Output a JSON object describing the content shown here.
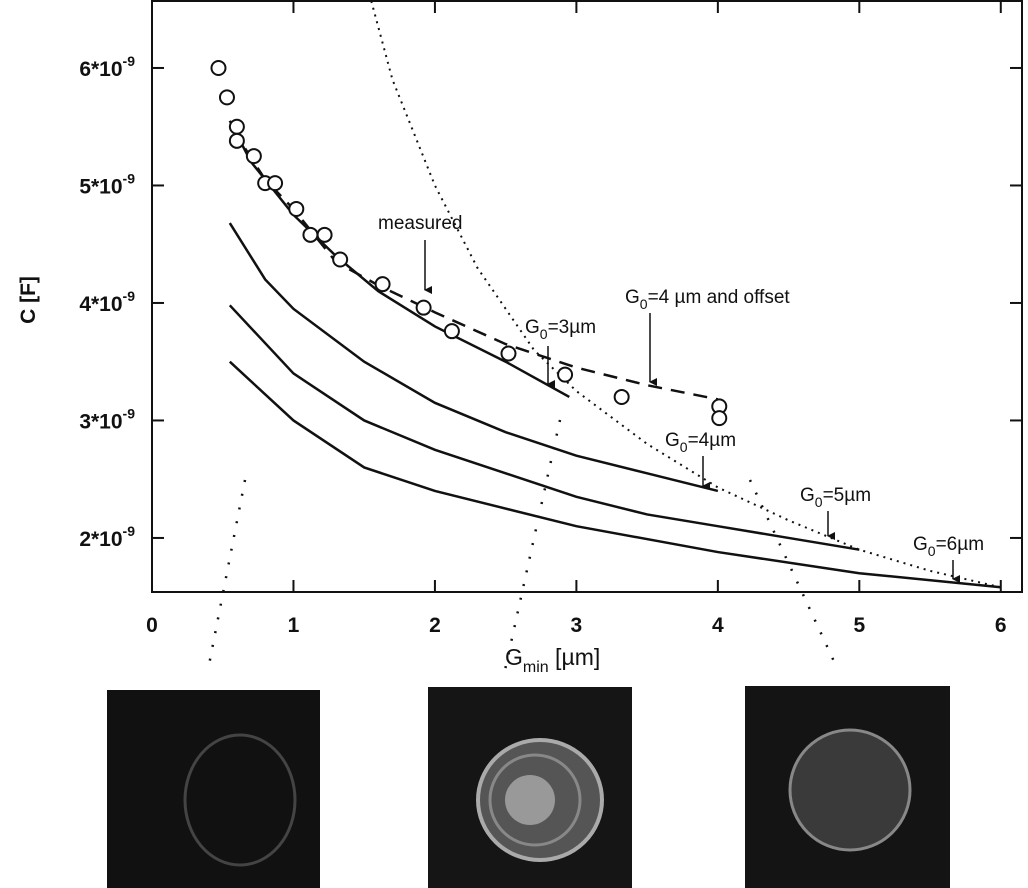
{
  "chart_data": {
    "type": "line",
    "xlabel": {
      "text": "G",
      "sub": "min",
      "rest": " [µm]"
    },
    "ylabel": "C [F]",
    "xlim": [
      0,
      6.15
    ],
    "ylim": [
      1.54e-09,
      6.57e-09
    ],
    "xticks": [
      0,
      1,
      2,
      3,
      4,
      5,
      6
    ],
    "yticks": [
      {
        "value": 2e-09,
        "label": "2*10",
        "sup": "-9"
      },
      {
        "value": 3e-09,
        "label": "3*10",
        "sup": "-9"
      },
      {
        "value": 4e-09,
        "label": "4*10",
        "sup": "-9"
      },
      {
        "value": 5e-09,
        "label": "5*10",
        "sup": "-9"
      },
      {
        "value": 6e-09,
        "label": "6*10",
        "sup": "-9"
      }
    ],
    "measured": {
      "x": [
        0.47,
        0.53,
        0.6,
        0.6,
        0.72,
        0.8,
        0.87,
        1.02,
        1.12,
        1.22,
        1.33,
        1.63,
        1.92,
        2.12,
        2.52,
        2.92,
        3.32,
        4.01,
        4.01
      ],
      "values": [
        6e-09,
        5.75e-09,
        5.5e-09,
        5.38e-09,
        5.25e-09,
        5.02e-09,
        5.02e-09,
        4.8e-09,
        4.58e-09,
        4.58e-09,
        4.37e-09,
        4.16e-09,
        3.96e-09,
        3.76e-09,
        3.57e-09,
        3.39e-09,
        3.2e-09,
        3.12e-09,
        3.02e-09
      ]
    },
    "series": [
      {
        "style": "dashed",
        "x": [
          0.57,
          0.8,
          1.0,
          1.3,
          1.6,
          2.0,
          2.5,
          3.0,
          3.5,
          4.0
        ],
        "values": [
          5.48e-09,
          5.05e-09,
          4.8e-09,
          4.35e-09,
          4.15e-09,
          3.92e-09,
          3.65e-09,
          3.45e-09,
          3.3e-09,
          3.18e-09
        ]
      },
      {
        "style": "solid",
        "x": [
          0.55,
          0.7,
          1.0,
          1.3,
          1.6,
          2.0,
          2.5,
          2.95
        ],
        "values": [
          5.55e-09,
          5.2e-09,
          4.75e-09,
          4.4e-09,
          4.1e-09,
          3.8e-09,
          3.5e-09,
          3.2e-09
        ]
      },
      {
        "style": "solid",
        "x": [
          0.55,
          0.8,
          1.0,
          1.5,
          2.0,
          2.5,
          3.0,
          3.5,
          4.0
        ],
        "values": [
          4.68e-09,
          4.2e-09,
          3.95e-09,
          3.5e-09,
          3.15e-09,
          2.9e-09,
          2.7e-09,
          2.55e-09,
          2.4e-09
        ]
      },
      {
        "style": "solid",
        "x": [
          0.55,
          1.0,
          1.5,
          2.0,
          2.5,
          3.0,
          3.5,
          4.0,
          4.5,
          5.0
        ],
        "values": [
          3.98e-09,
          3.4e-09,
          3e-09,
          2.75e-09,
          2.55e-09,
          2.35e-09,
          2.2e-09,
          2.1e-09,
          2e-09,
          1.9e-09
        ]
      },
      {
        "style": "solid",
        "x": [
          0.55,
          1.0,
          1.5,
          2.0,
          3.0,
          4.0,
          5.0,
          6.0
        ],
        "values": [
          3.5e-09,
          3e-09,
          2.6e-09,
          2.4e-09,
          2.1e-09,
          1.88e-09,
          1.7e-09,
          1.58e-09
        ]
      },
      {
        "style": "dotted",
        "x": [
          1.55,
          1.7,
          2.0,
          2.3,
          2.7,
          3.0,
          3.5,
          4.0,
          4.5,
          5.0,
          5.5,
          6.0
        ],
        "values": [
          6.57e-09,
          5.9e-09,
          5e-09,
          4.3e-09,
          3.6e-09,
          3.25e-09,
          2.8e-09,
          2.43e-09,
          2.15e-09,
          1.9e-09,
          1.72e-09,
          1.58e-09
        ]
      }
    ],
    "annotations": [
      {
        "text": "measured"
      },
      {
        "text": "G",
        "sub": "0",
        "rest": "=3µm"
      },
      {
        "text": "G",
        "sub": "0",
        "rest": "=4 µm and offset"
      },
      {
        "text": "G",
        "sub": "0",
        "rest": "=4µm"
      },
      {
        "text": "G",
        "sub": "0",
        "rest": "=5µm"
      },
      {
        "text": "G",
        "sub": "0",
        "rest": "=6µm"
      }
    ]
  }
}
